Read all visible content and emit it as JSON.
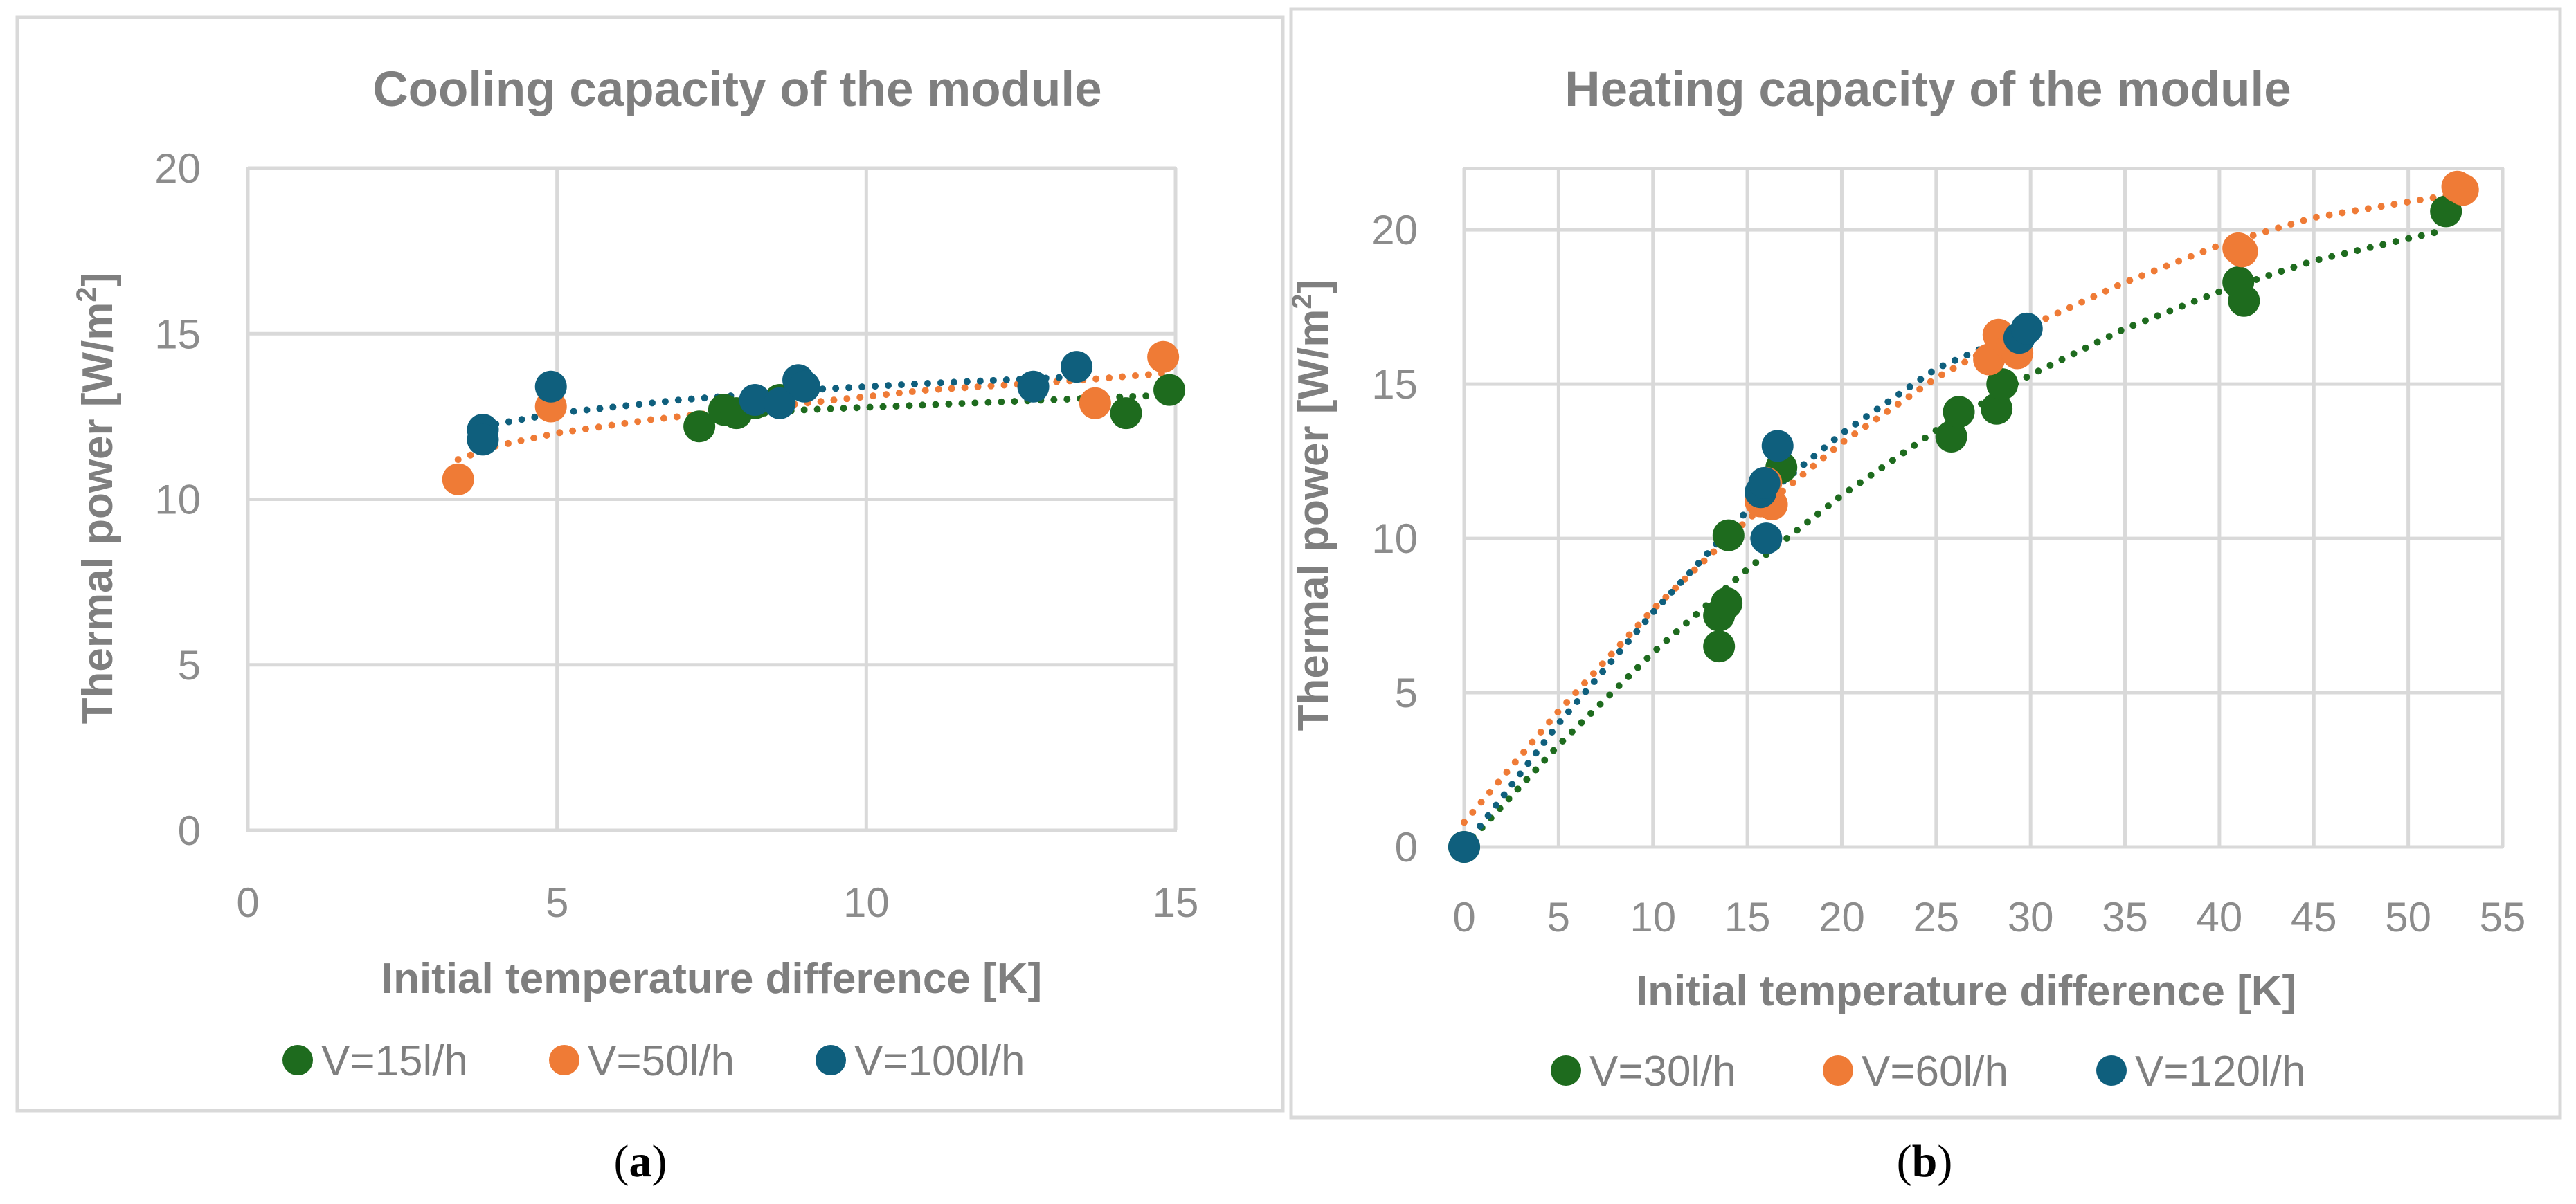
{
  "chart_data": [
    {
      "type": "scatter",
      "panel_label": "(a)",
      "caption": {
        "open": "(",
        "letter": "a",
        "close": ")"
      },
      "title": "Cooling capacity of the module",
      "xlabel": "Initial temperature difference [K]",
      "ylabel": {
        "main": "Thermal power [W/m",
        "sup": "2",
        "end": "]"
      },
      "xlim": [
        0,
        15
      ],
      "ylim": [
        0,
        20
      ],
      "xticks": [
        0,
        5,
        10,
        15
      ],
      "yticks": [
        0,
        5,
        10,
        15,
        20
      ],
      "grid": "vertical and horizontal",
      "legend": "bottom",
      "trendline": "dotted logarithmic",
      "series": [
        {
          "name": "V=15l/h",
          "color": "#1e6b1e",
          "points": [
            [
              7.3,
              12.2
            ],
            [
              7.7,
              12.7
            ],
            [
              7.9,
              12.6
            ],
            [
              8.2,
              12.9
            ],
            [
              8.6,
              13.0
            ],
            [
              14.2,
              12.6
            ],
            [
              14.9,
              13.3
            ]
          ],
          "trend": [
            [
              7.3,
              12.45
            ],
            [
              9.0,
              12.7
            ],
            [
              11.0,
              12.85
            ],
            [
              13.0,
              13.0
            ],
            [
              14.9,
              13.15
            ]
          ]
        },
        {
          "name": "V=50l/h",
          "color": "#ef7b36",
          "points": [
            [
              3.4,
              10.6
            ],
            [
              4.9,
              12.8
            ],
            [
              13.7,
              12.9
            ],
            [
              14.8,
              14.3
            ]
          ],
          "trend": [
            [
              3.4,
              11.2
            ],
            [
              4.0,
              11.6
            ],
            [
              5.0,
              12.0
            ],
            [
              6.5,
              12.4
            ],
            [
              8.5,
              12.8
            ],
            [
              11.0,
              13.3
            ],
            [
              13.5,
              13.6
            ],
            [
              14.8,
              13.8
            ]
          ]
        },
        {
          "name": "V=100l/h",
          "color": "#0f5f7d",
          "points": [
            [
              3.8,
              12.1
            ],
            [
              3.8,
              11.8
            ],
            [
              4.9,
              13.4
            ],
            [
              8.2,
              13.0
            ],
            [
              8.6,
              12.9
            ],
            [
              8.9,
              13.6
            ],
            [
              9.0,
              13.4
            ],
            [
              12.7,
              13.4
            ],
            [
              13.4,
              14.0
            ]
          ],
          "trend": [
            [
              3.8,
              12.2
            ],
            [
              5.0,
              12.6
            ],
            [
              7.0,
              13.0
            ],
            [
              9.0,
              13.3
            ],
            [
              11.0,
              13.5
            ],
            [
              13.4,
              13.7
            ]
          ]
        }
      ]
    },
    {
      "type": "scatter",
      "panel_label": "(b)",
      "caption": {
        "open": "(",
        "letter": "b",
        "close": ")"
      },
      "title": "Heating capacity of the module",
      "xlabel": "Initial temperature difference [K]",
      "ylabel": {
        "main": "Thermal power [W/m",
        "sup": "2",
        "end": "]"
      },
      "xlim": [
        0,
        55
      ],
      "ylim": [
        0,
        22
      ],
      "xticks": [
        0,
        5,
        10,
        15,
        20,
        25,
        30,
        35,
        40,
        45,
        50,
        55
      ],
      "yticks": [
        0,
        5,
        10,
        15,
        20
      ],
      "grid": "vertical and horizontal",
      "legend": "bottom",
      "trendline": "dotted polynomial",
      "series": [
        {
          "name": "V=30l/h",
          "color": "#1e6b1e",
          "points": [
            [
              0,
              0
            ],
            [
              13.5,
              6.5
            ],
            [
              13.5,
              7.5
            ],
            [
              13.9,
              7.9
            ],
            [
              14.0,
              10.1
            ],
            [
              16.8,
              12.3
            ],
            [
              25.8,
              13.3
            ],
            [
              26.2,
              14.1
            ],
            [
              28.2,
              14.2
            ],
            [
              28.5,
              15.0
            ],
            [
              41.0,
              18.3
            ],
            [
              41.3,
              17.7
            ],
            [
              52.0,
              20.6
            ]
          ],
          "trend": [
            [
              0,
              0
            ],
            [
              5,
              3.3
            ],
            [
              10,
              6.3
            ],
            [
              15,
              9.0
            ],
            [
              20,
              11.4
            ],
            [
              25,
              13.5
            ],
            [
              30,
              15.3
            ],
            [
              35,
              16.8
            ],
            [
              40,
              18.0
            ],
            [
              45,
              19.0
            ],
            [
              52,
              20.0
            ]
          ]
        },
        {
          "name": "V=60l/h",
          "color": "#ef7b36",
          "points": [
            [
              15.7,
              11.2
            ],
            [
              16.0,
              11.8
            ],
            [
              16.3,
              11.1
            ],
            [
              27.8,
              15.8
            ],
            [
              28.3,
              16.6
            ],
            [
              29.0,
              16.2
            ],
            [
              29.3,
              16.0
            ],
            [
              41.0,
              19.4
            ],
            [
              41.2,
              19.3
            ],
            [
              52.6,
              21.4
            ],
            [
              52.9,
              21.3
            ]
          ],
          "trend": [
            [
              0,
              0.8
            ],
            [
              5,
              4.4
            ],
            [
              10,
              7.7
            ],
            [
              15,
              10.6
            ],
            [
              20,
              13.1
            ],
            [
              25,
              15.2
            ],
            [
              30,
              16.9
            ],
            [
              35,
              18.3
            ],
            [
              40,
              19.5
            ],
            [
              45,
              20.4
            ],
            [
              52.9,
              21.2
            ]
          ]
        },
        {
          "name": "V=120l/h",
          "color": "#0f5f7d",
          "points": [
            [
              0,
              0
            ],
            [
              15.7,
              11.5
            ],
            [
              15.9,
              11.8
            ],
            [
              16.0,
              10.0
            ],
            [
              16.6,
              13.0
            ],
            [
              29.4,
              16.5
            ],
            [
              29.8,
              16.8
            ]
          ],
          "trend": [
            [
              0,
              0
            ],
            [
              5,
              4.0
            ],
            [
              10,
              7.6
            ],
            [
              15,
              10.9
            ],
            [
              20,
              13.4
            ],
            [
              25,
              15.5
            ],
            [
              29.8,
              16.8
            ]
          ]
        }
      ]
    }
  ]
}
